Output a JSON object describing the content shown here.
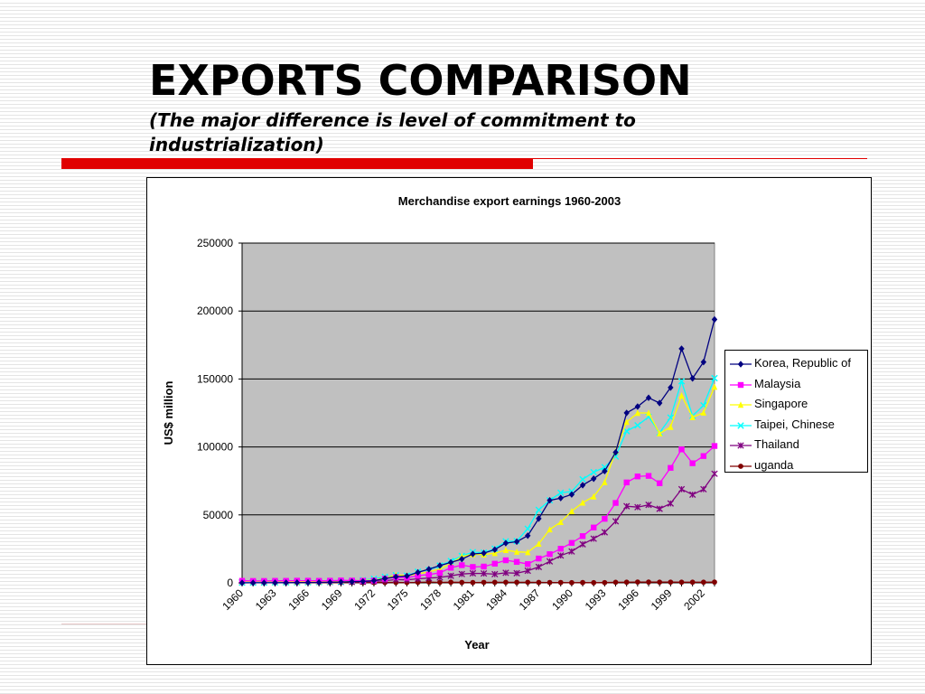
{
  "slide": {
    "title": "EXPORTS COMPARISON",
    "subtitle": "(The major difference is level of commitment to industrialization)"
  },
  "colors": {
    "accent": "#e00000",
    "plot_bg": "#c0c0c0"
  },
  "chart_data": {
    "type": "line",
    "title": "Merchandise export earnings 1960-2003",
    "xlabel": "Year",
    "ylabel": "US$ million",
    "ylim": [
      0,
      250000
    ],
    "yticks": [
      0,
      50000,
      100000,
      150000,
      200000,
      250000
    ],
    "ytick_labels": [
      "0",
      "50000",
      "100000",
      "150000",
      "200000",
      "250000"
    ],
    "x": [
      1960,
      1961,
      1962,
      1963,
      1964,
      1965,
      1966,
      1967,
      1968,
      1969,
      1970,
      1971,
      1972,
      1973,
      1974,
      1975,
      1976,
      1977,
      1978,
      1979,
      1980,
      1981,
      1982,
      1983,
      1984,
      1985,
      1986,
      1987,
      1988,
      1989,
      1990,
      1991,
      1992,
      1993,
      1994,
      1995,
      1996,
      1997,
      1998,
      1999,
      2000,
      2001,
      2002,
      2003
    ],
    "xtick_labels": [
      "1960",
      "1963",
      "1966",
      "1969",
      "1972",
      "1975",
      "1978",
      "1981",
      "1984",
      "1987",
      "1990",
      "1993",
      "1996",
      "1999",
      "2002"
    ],
    "grid": "horizontal",
    "legend_position": "right",
    "series": [
      {
        "name": "Korea, Republic of",
        "color": "#000080",
        "marker": "diamond",
        "values": [
          33,
          41,
          55,
          87,
          119,
          175,
          250,
          320,
          455,
          623,
          835,
          1068,
          1624,
          3225,
          4460,
          5081,
          7715,
          10046,
          12711,
          15056,
          17512,
          21254,
          21853,
          24445,
          29245,
          30283,
          34715,
          47281,
          60696,
          62377,
          65016,
          71870,
          76632,
          82236,
          96013,
          125058,
          129715,
          136164,
          132313,
          143686,
          172268,
          150439,
          162471,
          193817
        ]
      },
      {
        "name": "Malaysia",
        "color": "#ff00ff",
        "marker": "square",
        "values": [
          1500,
          1400,
          1400,
          1500,
          1500,
          1600,
          1600,
          1500,
          1600,
          1800,
          1700,
          1600,
          1700,
          3000,
          4200,
          3800,
          5300,
          6100,
          7400,
          11100,
          13000,
          11700,
          12000,
          14100,
          16600,
          15400,
          13800,
          17900,
          21100,
          25100,
          29400,
          34400,
          40700,
          47100,
          58800,
          73900,
          78300,
          78700,
          73300,
          84600,
          98200,
          88000,
          93300,
          100700
        ]
      },
      {
        "name": "Singapore",
        "color": "#ffff00",
        "marker": "triangle",
        "values": [
          1100,
          1100,
          1100,
          1200,
          1100,
          1000,
          1100,
          1100,
          1200,
          1500,
          1600,
          1800,
          2100,
          3600,
          5800,
          5400,
          6600,
          8200,
          10100,
          14200,
          19400,
          21000,
          20800,
          21800,
          24100,
          22800,
          22500,
          28700,
          39300,
          44700,
          52700,
          59000,
          63500,
          74000,
          96800,
          118300,
          125000,
          125000,
          109900,
          114700,
          137800,
          121800,
          125200,
          144200
        ]
      },
      {
        "name": "Taipei, Chinese",
        "color": "#00ffff",
        "marker": "x",
        "values": [
          200,
          200,
          200,
          400,
          400,
          500,
          500,
          600,
          800,
          1000,
          1500,
          2000,
          3000,
          4400,
          5600,
          5300,
          8200,
          9400,
          12700,
          16100,
          19800,
          22600,
          22200,
          25100,
          30500,
          30700,
          39800,
          53700,
          60700,
          66300,
          67200,
          76200,
          81400,
          85100,
          93000,
          111700,
          115900,
          122100,
          110600,
          121600,
          148300,
          122900,
          130600,
          150600
        ]
      },
      {
        "name": "Thailand",
        "color": "#800080",
        "marker": "star",
        "values": [
          400,
          500,
          500,
          500,
          600,
          600,
          700,
          700,
          600,
          700,
          700,
          800,
          1100,
          1600,
          2400,
          2200,
          3000,
          3500,
          4000,
          5200,
          6500,
          7000,
          6900,
          6400,
          7400,
          7100,
          8900,
          11700,
          15800,
          20100,
          23100,
          28400,
          32500,
          37200,
          45300,
          56400,
          55700,
          57400,
          54500,
          58400,
          68900,
          64900,
          68900,
          80300
        ]
      },
      {
        "name": "uganda",
        "color": "#800000",
        "marker": "circle",
        "values": [
          100,
          100,
          100,
          150,
          150,
          180,
          190,
          190,
          190,
          200,
          250,
          240,
          260,
          320,
          320,
          260,
          350,
          610,
          350,
          460,
          320,
          230,
          350,
          380,
          410,
          380,
          410,
          320,
          270,
          270,
          150,
          200,
          140,
          180,
          420,
          460,
          590,
          560,
          500,
          520,
          460,
          460,
          480,
          560
        ]
      }
    ]
  }
}
